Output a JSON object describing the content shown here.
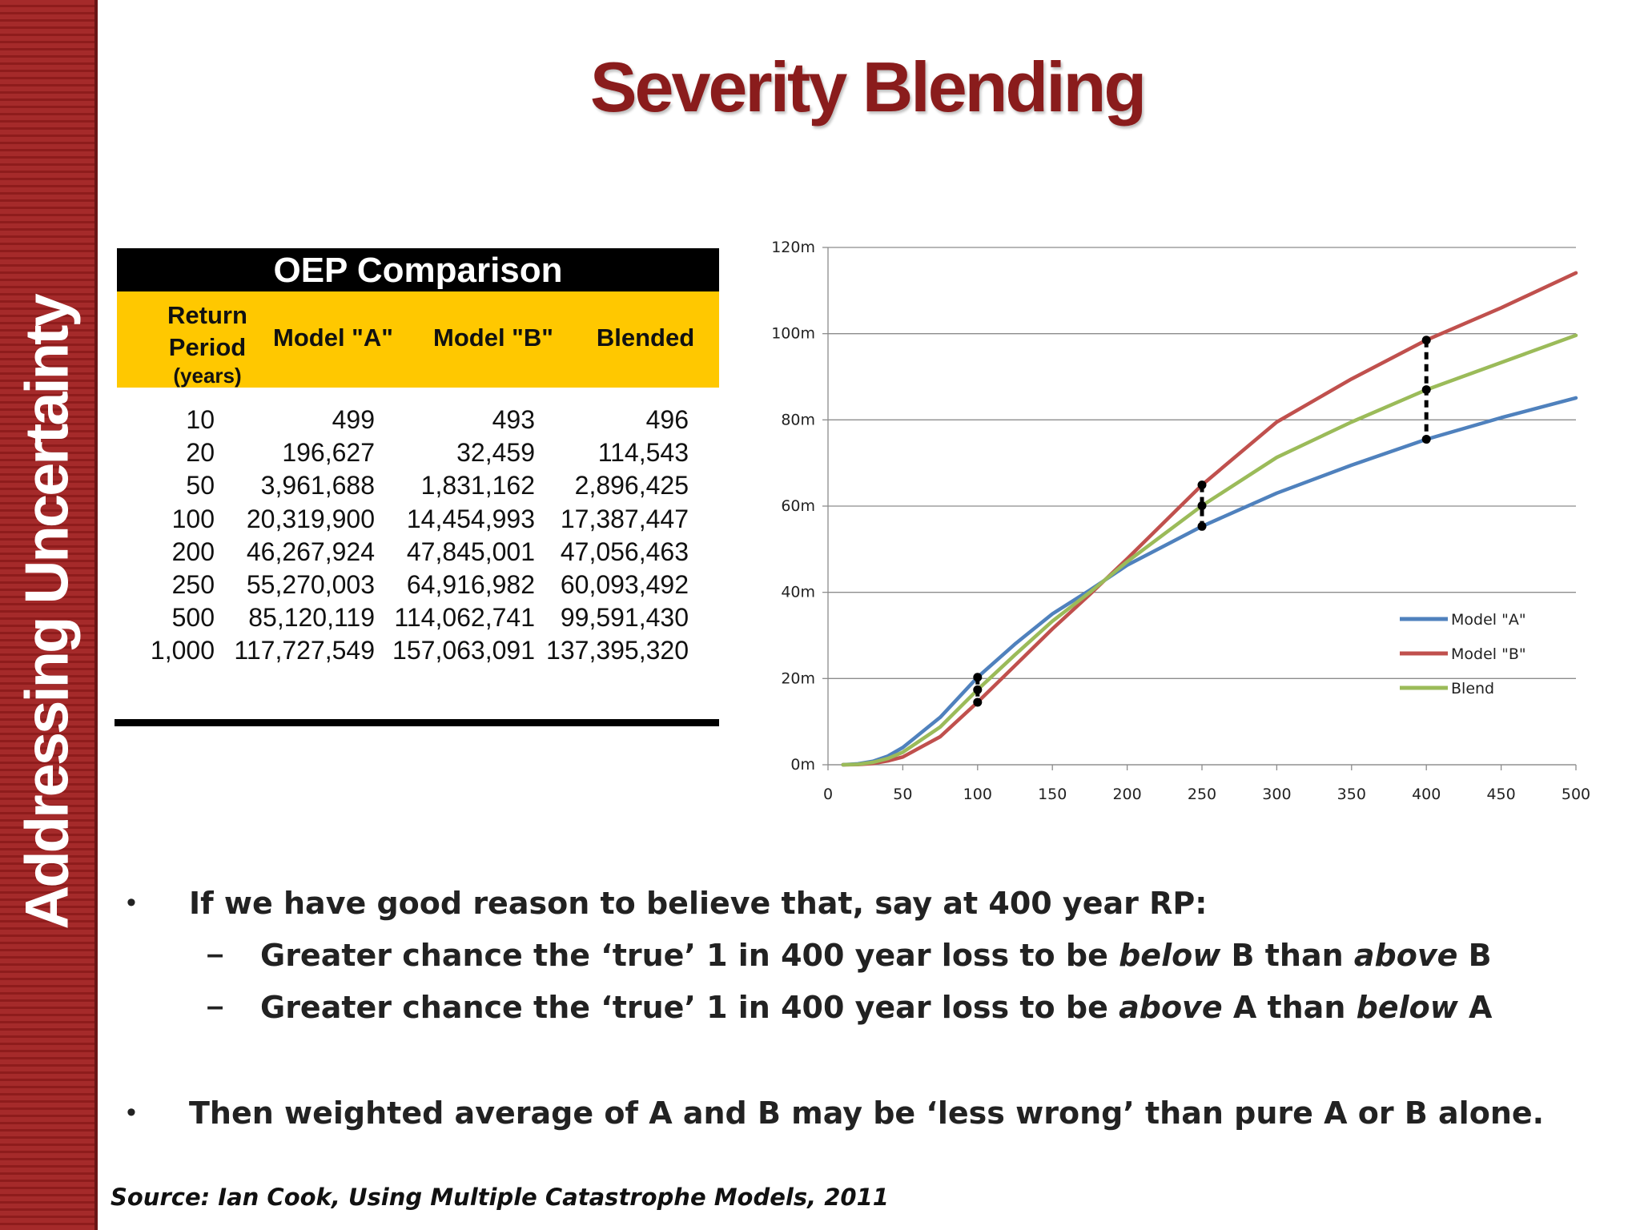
{
  "sidebar": {
    "label": "Addressing Uncertainty"
  },
  "title": "Severity Blending",
  "table": {
    "title": "OEP Comparison",
    "headers": {
      "return_period_line1": "Return",
      "return_period_line2": "Period",
      "return_period_line3": "(years)",
      "model_a": "Model \"A\"",
      "model_b": "Model \"B\"",
      "blended": "Blended"
    },
    "rows": [
      [
        "10",
        "499",
        "493",
        "496"
      ],
      [
        "20",
        "196,627",
        "32,459",
        "114,543"
      ],
      [
        "50",
        "3,961,688",
        "1,831,162",
        "2,896,425"
      ],
      [
        "100",
        "20,319,900",
        "14,454,993",
        "17,387,447"
      ],
      [
        "200",
        "46,267,924",
        "47,845,001",
        "47,056,463"
      ],
      [
        "250",
        "55,270,003",
        "64,916,982",
        "60,093,492"
      ],
      [
        "500",
        "85,120,119",
        "114,062,741",
        "99,591,430"
      ],
      [
        "1,000",
        "117,727,549",
        "157,063,091",
        "137,395,320"
      ]
    ]
  },
  "chart_data": {
    "type": "line",
    "xlim": [
      0,
      500
    ],
    "ylim": [
      0,
      120
    ],
    "xticks": [
      "0",
      "50",
      "100",
      "150",
      "200",
      "250",
      "300",
      "350",
      "400",
      "450",
      "500"
    ],
    "yticks": [
      "0m",
      "20m",
      "40m",
      "60m",
      "80m",
      "100m",
      "120m"
    ],
    "grid": "horizontal",
    "legend_position": "right",
    "series": [
      {
        "name": "Model \"A\"",
        "color": "#4f81bd",
        "x": [
          10,
          20,
          30,
          40,
          50,
          75,
          100,
          125,
          150,
          175,
          200,
          250,
          300,
          350,
          400,
          450,
          500
        ],
        "y": [
          0,
          0.2,
          0.8,
          2,
          4,
          11,
          20.3,
          28,
          35,
          40.5,
          46.3,
          55.3,
          63,
          69.5,
          75.5,
          80.5,
          85.1
        ]
      },
      {
        "name": "Model \"B\"",
        "color": "#c0504d",
        "x": [
          10,
          20,
          30,
          40,
          50,
          75,
          100,
          125,
          150,
          175,
          200,
          250,
          300,
          350,
          400,
          450,
          500
        ],
        "y": [
          0,
          0.03,
          0.3,
          0.9,
          1.8,
          6.5,
          14.5,
          23,
          31.5,
          39.5,
          47.8,
          64.9,
          79.5,
          89.5,
          98.5,
          106,
          114.1
        ]
      },
      {
        "name": "Blend",
        "color": "#9bbb59",
        "x": [
          10,
          20,
          30,
          40,
          50,
          75,
          100,
          125,
          150,
          175,
          200,
          250,
          300,
          350,
          400,
          450,
          500
        ],
        "y": [
          0,
          0.1,
          0.55,
          1.45,
          2.9,
          8.75,
          17.4,
          25.5,
          33.3,
          40,
          47.1,
          60.1,
          71.3,
          79.5,
          87,
          93.3,
          99.6
        ]
      }
    ],
    "markers": [
      {
        "x": 100,
        "low": 14.5,
        "mid": 17.4,
        "high": 20.3
      },
      {
        "x": 250,
        "low": 55.3,
        "mid": 60.1,
        "high": 64.9
      },
      {
        "x": 400,
        "low": 75.5,
        "mid": 87,
        "high": 98.5
      }
    ]
  },
  "bullets": {
    "b1": "If we have good reason to believe that, say at 400 year RP:",
    "s1_pre": "Greater chance the ‘true’ 1 in 400 year loss to be ",
    "s1_em1": "below",
    "s1_mid": " B than ",
    "s1_em2": "above",
    "s1_post": " B",
    "s2_pre": "Greater chance the ‘true’ 1 in 400 year loss to be ",
    "s2_em1": "above",
    "s2_mid": " A than ",
    "s2_em2": "below",
    "s2_post": " A",
    "b2": "Then weighted average of A and B may be ‘less wrong’ than pure A or B alone."
  },
  "source": "Source: Ian Cook, Using Multiple Catastrophe Models, 2011"
}
